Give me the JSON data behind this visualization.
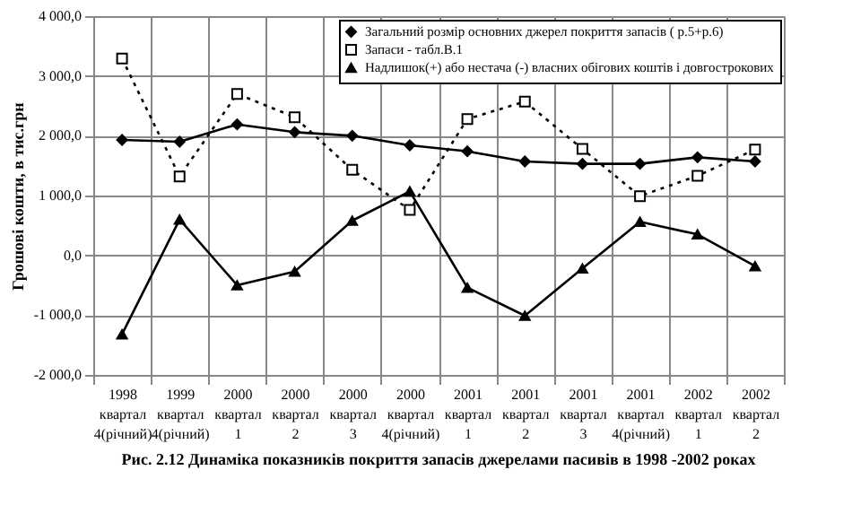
{
  "chart_data": {
    "type": "line",
    "title": "Рис.  2.12  Динаміка показників покриття запасів джерелами пасивів в 1998 -2002 роках",
    "ylabel": "Грошові кошти, в тис.грн",
    "categories": [
      "1998\nквартал\n4(річний)",
      "1999\nквартал\n4(річний)",
      "2000\nквартал\n1",
      "2000\nквартал\n2",
      "2000\nквартал\n3",
      "2000\nквартал\n4(річний)",
      "2001\nквартал\n1",
      "2001\nквартал\n2",
      "2001\nквартал\n3",
      "2001\nквартал\n4(річний)",
      "2002\nквартал\n1",
      "2002\nквартал\n2"
    ],
    "series": [
      {
        "name": "Загальний розмір основних джерел покриття запасів ( р.5+р.6)",
        "color": "#000000",
        "marker": "diamond",
        "line_style": "solid",
        "values": [
          1930,
          1900,
          2190,
          2060,
          2000,
          1840,
          1740,
          1570,
          1530,
          1530,
          1640,
          1570
        ]
      },
      {
        "name": "Запаси - табл.В.1",
        "color": "#000000",
        "marker": "square",
        "line_style": "dotted",
        "values": [
          3290,
          1320,
          2700,
          2310,
          1430,
          760,
          2280,
          2570,
          1780,
          990,
          1330,
          1770
        ]
      },
      {
        "name": "Надлишок(+) або нестача (-) власних обігових коштів і довгострокових",
        "color": "#000000",
        "marker": "triangle",
        "line_style": "solid",
        "values": [
          -1320,
          600,
          -500,
          -270,
          580,
          1070,
          -540,
          -1010,
          -220,
          560,
          350,
          -180
        ]
      }
    ],
    "ylim": [
      -2000,
      4000
    ],
    "yticks": [
      {
        "value": -2000,
        "label": "-2 000,0"
      },
      {
        "value": -1000,
        "label": "-1 000,0"
      },
      {
        "value": 0,
        "label": "0,0"
      },
      {
        "value": 1000,
        "label": "1 000,0"
      },
      {
        "value": 2000,
        "label": "2 000,0"
      },
      {
        "value": 3000,
        "label": "3 000,0"
      },
      {
        "value": 4000,
        "label": "4 000,0"
      }
    ],
    "grid": true,
    "legend": "top right"
  }
}
